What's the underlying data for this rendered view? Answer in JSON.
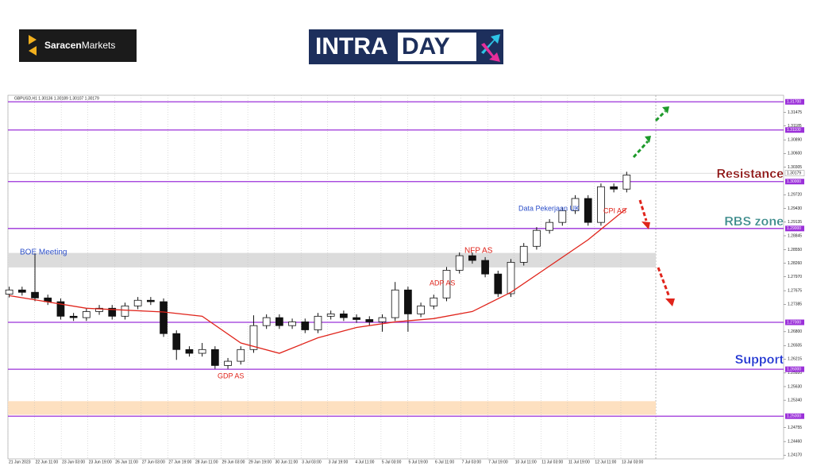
{
  "header": {
    "brand_bold": "Saracen",
    "brand_rest": "Markets",
    "banner_a": "INTRA",
    "banner_b": "DAY"
  },
  "chart_data": {
    "type": "candlestick",
    "title": "GBPUSD,H1 1.30136 1.30189 1.30107 1.30179",
    "x": [
      1,
      2,
      3,
      4,
      5,
      6,
      7,
      8,
      9,
      10,
      11,
      12,
      13,
      14,
      15,
      16,
      17,
      18,
      19,
      20,
      21,
      22,
      23,
      24,
      25,
      26,
      27,
      28,
      29,
      30,
      31,
      32,
      33,
      34,
      35,
      36,
      37,
      38,
      39,
      40,
      41,
      42,
      43,
      44,
      45,
      46,
      47,
      48,
      49
    ],
    "open": [
      1.276,
      1.2769,
      1.2764,
      1.2752,
      1.2744,
      1.2713,
      1.271,
      1.2723,
      1.273,
      1.2713,
      1.2735,
      1.2747,
      1.2744,
      1.2676,
      1.2642,
      1.2634,
      1.2642,
      1.2608,
      1.2617,
      1.2642,
      1.2693,
      1.271,
      1.2693,
      1.2701,
      1.2684,
      1.2713,
      1.2718,
      1.271,
      1.2706,
      1.2701,
      1.271,
      1.2769,
      1.2718,
      1.2735,
      1.2752,
      1.2811,
      1.2842,
      1.2832,
      1.2803,
      1.2761,
      1.2828,
      1.2862,
      1.2896,
      1.2913,
      1.2938,
      1.2964,
      1.2913,
      1.2989,
      1.2984
    ],
    "high": [
      1.2776,
      1.2776,
      1.2847,
      1.2759,
      1.2751,
      1.272,
      1.273,
      1.2737,
      1.2737,
      1.2742,
      1.2754,
      1.2754,
      1.2751,
      1.2683,
      1.2649,
      1.2656,
      1.2649,
      1.2624,
      1.2649,
      1.2715,
      1.2717,
      1.2717,
      1.2708,
      1.2708,
      1.272,
      1.2725,
      1.2725,
      1.2717,
      1.2713,
      1.2717,
      1.2786,
      1.2776,
      1.2742,
      1.2759,
      1.2818,
      1.2849,
      1.2849,
      1.2839,
      1.281,
      1.2835,
      1.2869,
      1.2903,
      1.292,
      1.2945,
      1.2971,
      1.2971,
      1.2996,
      1.2996,
      1.3021
    ],
    "low": [
      1.2753,
      1.2757,
      1.2745,
      1.2737,
      1.2706,
      1.2703,
      1.2703,
      1.2716,
      1.2706,
      1.2706,
      1.2728,
      1.2737,
      1.2669,
      1.262,
      1.2627,
      1.2627,
      1.2601,
      1.2601,
      1.261,
      1.2635,
      1.2686,
      1.2686,
      1.2686,
      1.2677,
      1.2677,
      1.2706,
      1.2703,
      1.2699,
      1.2694,
      1.268,
      1.2703,
      1.268,
      1.2711,
      1.2728,
      1.2745,
      1.2804,
      1.2825,
      1.2796,
      1.2754,
      1.2754,
      1.2821,
      1.2855,
      1.2889,
      1.2906,
      1.2931,
      1.2906,
      1.2906,
      1.2977,
      1.2977
    ],
    "close": [
      1.2769,
      1.2764,
      1.2752,
      1.2744,
      1.2713,
      1.271,
      1.2723,
      1.273,
      1.2713,
      1.2735,
      1.2747,
      1.2744,
      1.2676,
      1.2642,
      1.2634,
      1.2642,
      1.2608,
      1.2617,
      1.2642,
      1.2693,
      1.271,
      1.2693,
      1.2701,
      1.2684,
      1.2713,
      1.2718,
      1.271,
      1.2706,
      1.2701,
      1.271,
      1.2769,
      1.2718,
      1.2735,
      1.2752,
      1.2811,
      1.2842,
      1.2832,
      1.2803,
      1.2761,
      1.2828,
      1.2862,
      1.2896,
      1.2913,
      1.2938,
      1.2964,
      1.2913,
      1.2989,
      1.2984,
      1.3014
    ],
    "up_color": "#ffffff",
    "down_color": "#111111",
    "wick_color": "#111111",
    "ma": {
      "color": "#e0241b",
      "x": [
        1,
        7,
        13,
        16,
        19,
        22,
        25,
        28,
        31,
        34,
        37,
        40,
        43,
        46,
        49
      ],
      "values": [
        1.2757,
        1.273,
        1.2722,
        1.2713,
        1.2656,
        1.2634,
        1.2667,
        1.2689,
        1.2701,
        1.2708,
        1.2723,
        1.2764,
        1.282,
        1.2876,
        1.2943
      ]
    },
    "xlim": [
      0.9,
      61.2
    ],
    "ylim": [
      1.2409,
      1.3184
    ],
    "yticks": [
      {
        "value": 1.31475,
        "label": "1.31475"
      },
      {
        "value": 1.31185,
        "label": "1.31185"
      },
      {
        "value": 1.3089,
        "label": "1.30890"
      },
      {
        "value": 1.306,
        "label": "1.30600"
      },
      {
        "value": 1.30305,
        "label": "1.30305"
      },
      {
        "value": 1.2972,
        "label": "1.29720"
      },
      {
        "value": 1.2943,
        "label": "1.29430"
      },
      {
        "value": 1.29135,
        "label": "1.29135"
      },
      {
        "value": 1.28845,
        "label": "1.28845"
      },
      {
        "value": 1.2855,
        "label": "1.28550"
      },
      {
        "value": 1.2826,
        "label": "1.28260"
      },
      {
        "value": 1.2797,
        "label": "1.27970"
      },
      {
        "value": 1.27675,
        "label": "1.27675"
      },
      {
        "value": 1.27385,
        "label": "1.27385"
      },
      {
        "value": 1.268,
        "label": "1.26800"
      },
      {
        "value": 1.26505,
        "label": "1.26505"
      },
      {
        "value": 1.26215,
        "label": "1.26215"
      },
      {
        "value": 1.2592,
        "label": "1.25920"
      },
      {
        "value": 1.2563,
        "label": "1.25630"
      },
      {
        "value": 1.2534,
        "label": "1.25340"
      },
      {
        "value": 1.24755,
        "label": "1.24755"
      },
      {
        "value": 1.2446,
        "label": "1.24460"
      },
      {
        "value": 1.2417,
        "label": "1.24170"
      }
    ],
    "levels": [
      {
        "value": 1.317,
        "label": "1.31700"
      },
      {
        "value": 1.311,
        "label": "1.31100"
      },
      {
        "value": 1.3,
        "label": "1.30000"
      },
      {
        "value": 1.29,
        "label": "1.29000"
      },
      {
        "value": 1.27,
        "label": "1.27000"
      },
      {
        "value": 1.26,
        "label": "1.26000"
      },
      {
        "value": 1.25,
        "label": "1.25000"
      }
    ],
    "level_color": "#9b30d9",
    "current_price": {
      "value": 1.30179,
      "label": "1.30179"
    },
    "zones": [
      {
        "range": [
          1.2817,
          1.2848
        ],
        "color": "#dcdcdc"
      },
      {
        "range": [
          1.2503,
          1.2532
        ],
        "color": "#fde0c0"
      }
    ],
    "date_labels": [
      "21 Jun 2023",
      "22 Jun 11:00",
      "23 Jun 03:00",
      "23 Jun 19:00",
      "26 Jun 11:00",
      "27 Jun 03:00",
      "27 Jun 19:00",
      "28 Jun 11:00",
      "29 Jun 03:00",
      "29 Jun 19:00",
      "30 Jun 11:00",
      "3 Jul 03:00",
      "3 Jul 19:00",
      "4 Jul 11:00",
      "5 Jul 03:00",
      "5 Jul 19:00",
      "6 Jul 11:00",
      "7 Jul 03:00",
      "7 Jul 19:00",
      "10 Jul 11:00",
      "11 Jul 03:00",
      "11 Jul 19:00",
      "12 Jul 11:00",
      "13 Jul 03:00"
    ],
    "annotations": [
      {
        "text": "BOE Meeting",
        "color": "#2c4fc9"
      },
      {
        "text": "GDP AS",
        "color": "#e0241b"
      },
      {
        "text": "ADP AS",
        "color": "#e0241b"
      },
      {
        "text": "NFP AS",
        "color": "#e0241b"
      },
      {
        "text": "Data Pekerjaan UK",
        "color": "#2c4fc9"
      },
      {
        "text": "CPI AS",
        "color": "#e0241b"
      }
    ],
    "side_labels": [
      {
        "text": "Resistance",
        "color": "#8b0e0e"
      },
      {
        "text": "RBS zone",
        "color": "#3a8a8a"
      },
      {
        "text": "Support",
        "color": "#1a2fd0"
      }
    ]
  }
}
